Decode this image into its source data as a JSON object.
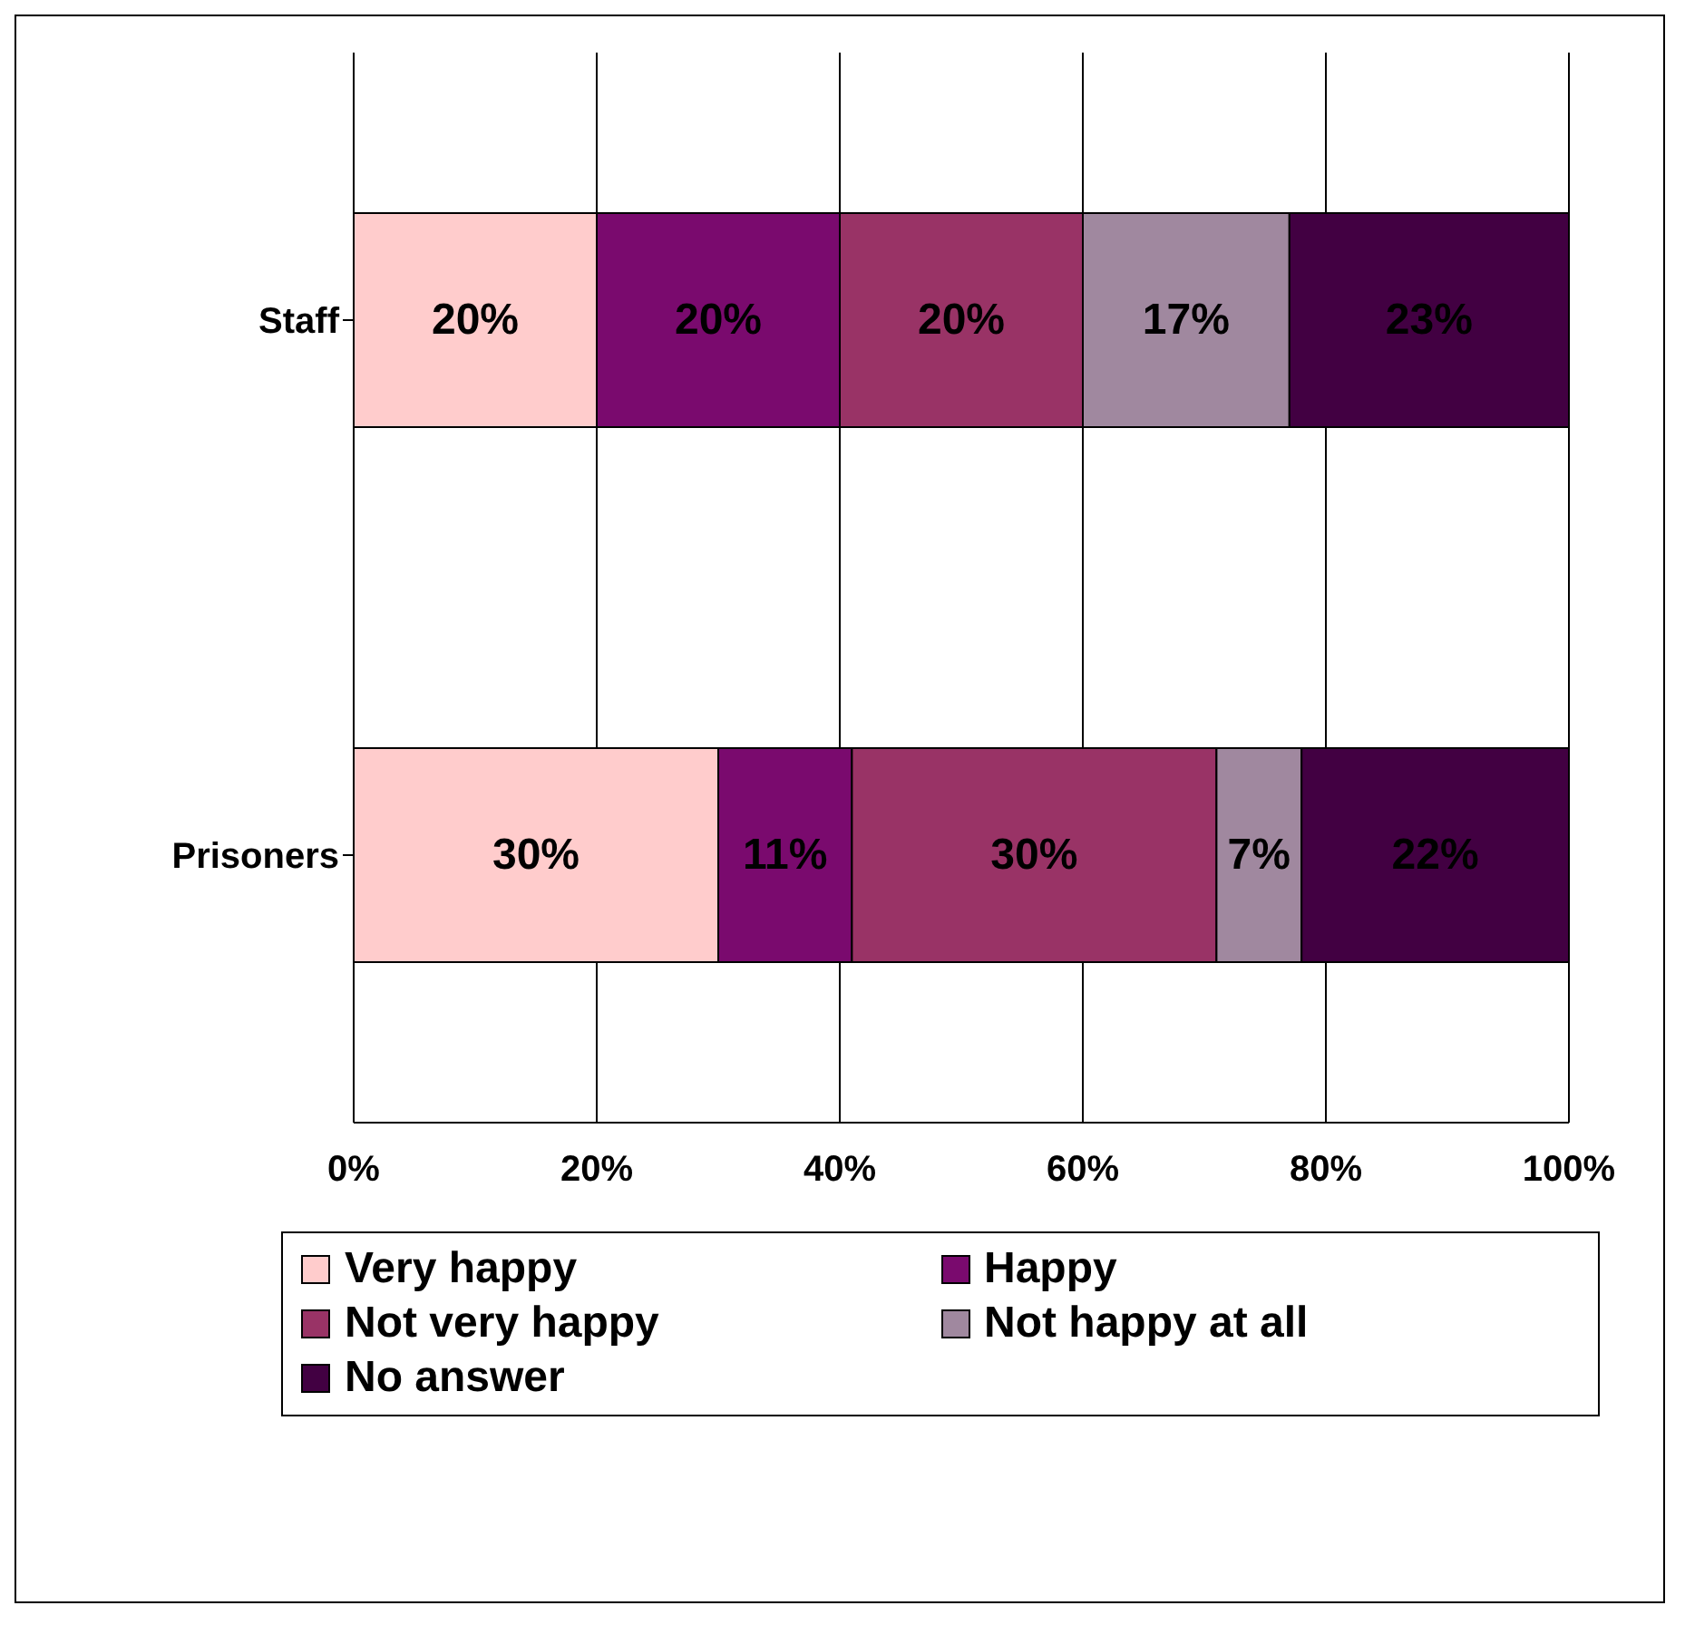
{
  "chart_data": {
    "type": "bar",
    "orientation": "horizontal",
    "stacked": true,
    "categories": [
      "Staff",
      "Prisoners"
    ],
    "series": [
      {
        "name": "Very happy",
        "color": "#ffcccc",
        "values": [
          20,
          30
        ],
        "value_labels": [
          "20%",
          "30%"
        ]
      },
      {
        "name": "Happy",
        "color": "#7a0a6e",
        "values": [
          20,
          11
        ],
        "value_labels": [
          "20%",
          "11%"
        ]
      },
      {
        "name": "Not very happy",
        "color": "#993366",
        "values": [
          20,
          30
        ],
        "value_labels": [
          "20%",
          "30%"
        ]
      },
      {
        "name": "Not happy at all",
        "color": "#a0889f",
        "values": [
          17,
          7
        ],
        "value_labels": [
          "17%",
          "7%"
        ]
      },
      {
        "name": "No answer",
        "color": "#420042",
        "values": [
          23,
          22
        ],
        "value_labels": [
          "23%",
          "22%"
        ]
      }
    ],
    "xlim": [
      0,
      100
    ],
    "xticks": [
      {
        "value": 0,
        "label": "0%"
      },
      {
        "value": 20,
        "label": "20%"
      },
      {
        "value": 40,
        "label": "40%"
      },
      {
        "value": 60,
        "label": "60%"
      },
      {
        "value": 80,
        "label": "80%"
      },
      {
        "value": 100,
        "label": "100%"
      }
    ],
    "grid": "x",
    "legend": "bottom"
  }
}
